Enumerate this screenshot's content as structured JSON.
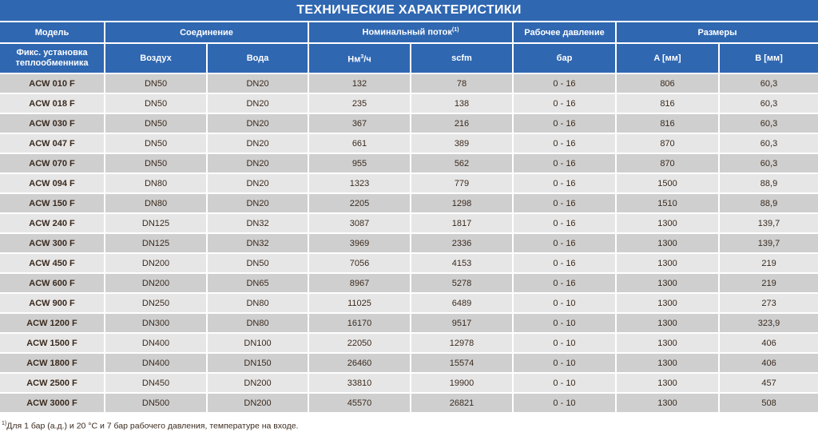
{
  "title": "ТЕХНИЧЕСКИЕ ХАРАКТЕРИСТИКИ",
  "colors": {
    "header_bg": "#2f67b1",
    "row_dark": "#cfcfcf",
    "row_light": "#e6e6e6",
    "text": "#3b2a1e"
  },
  "header_groups": {
    "model": "Модель",
    "connection": "Соединение",
    "flow": "Номинальный поток",
    "flow_note": "(1)",
    "pressure": "Рабочее давление",
    "dimensions": "Размеры"
  },
  "subheaders": {
    "model": "Фикс. установка теплообменника",
    "air": "Воздух",
    "water": "Вода",
    "nm3": "Нм",
    "nm3_sup": "3",
    "nm3_suffix": "/ч",
    "scfm": "scfm",
    "bar": "бар",
    "a": "A [мм]",
    "b": "B [мм]"
  },
  "rows": [
    [
      "ACW 010 F",
      "DN50",
      "DN20",
      "132",
      "78",
      "0 - 16",
      "806",
      "60,3"
    ],
    [
      "ACW 018 F",
      "DN50",
      "DN20",
      "235",
      "138",
      "0 - 16",
      "816",
      "60,3"
    ],
    [
      "ACW 030 F",
      "DN50",
      "DN20",
      "367",
      "216",
      "0 - 16",
      "816",
      "60,3"
    ],
    [
      "ACW 047 F",
      "DN50",
      "DN20",
      "661",
      "389",
      "0 - 16",
      "870",
      "60,3"
    ],
    [
      "ACW 070 F",
      "DN50",
      "DN20",
      "955",
      "562",
      "0 - 16",
      "870",
      "60,3"
    ],
    [
      "ACW 094 F",
      "DN80",
      "DN20",
      "1323",
      "779",
      "0 - 16",
      "1500",
      "88,9"
    ],
    [
      "ACW 150 F",
      "DN80",
      "DN20",
      "2205",
      "1298",
      "0 - 16",
      "1510",
      "88,9"
    ],
    [
      "ACW 240 F",
      "DN125",
      "DN32",
      "3087",
      "1817",
      "0 - 16",
      "1300",
      "139,7"
    ],
    [
      "ACW 300 F",
      "DN125",
      "DN32",
      "3969",
      "2336",
      "0 - 16",
      "1300",
      "139,7"
    ],
    [
      "ACW 450 F",
      "DN200",
      "DN50",
      "7056",
      "4153",
      "0 - 16",
      "1300",
      "219"
    ],
    [
      "ACW 600 F",
      "DN200",
      "DN65",
      "8967",
      "5278",
      "0 - 16",
      "1300",
      "219"
    ],
    [
      "ACW 900 F",
      "DN250",
      "DN80",
      "11025",
      "6489",
      "0 - 10",
      "1300",
      "273"
    ],
    [
      "ACW 1200 F",
      "DN300",
      "DN80",
      "16170",
      "9517",
      "0 - 10",
      "1300",
      "323,9"
    ],
    [
      "ACW 1500 F",
      "DN400",
      "DN100",
      "22050",
      "12978",
      "0 - 10",
      "1300",
      "406"
    ],
    [
      "ACW 1800 F",
      "DN400",
      "DN150",
      "26460",
      "15574",
      "0 - 10",
      "1300",
      "406"
    ],
    [
      "ACW 2500 F",
      "DN450",
      "DN200",
      "33810",
      "19900",
      "0 - 10",
      "1300",
      "457"
    ],
    [
      "ACW 3000 F",
      "DN500",
      "DN200",
      "45570",
      "26821",
      "0 - 10",
      "1300",
      "508"
    ]
  ],
  "footnote": {
    "mark": "1)",
    "text": "Для 1 бар (а.д.) и 20 °C и 7 бар рабочего давления, температуре на входе."
  }
}
